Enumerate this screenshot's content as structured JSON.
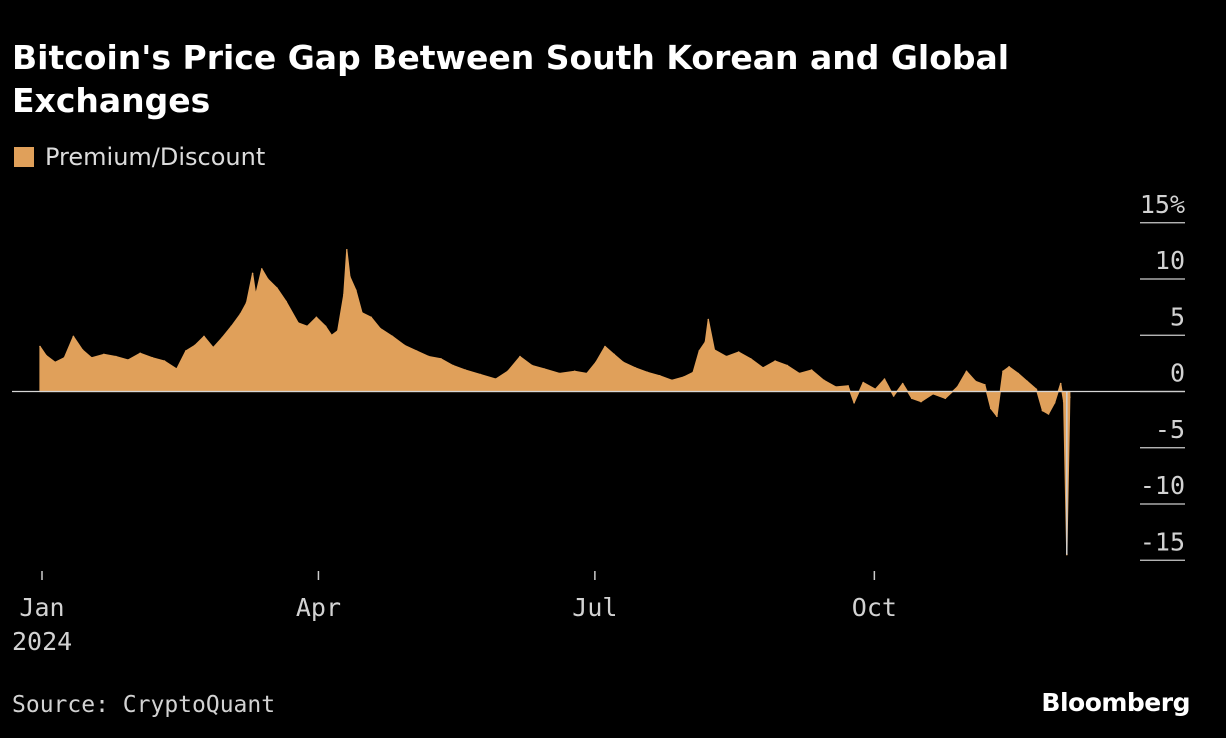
{
  "chart_data": {
    "type": "area",
    "title": "Bitcoin's Price Gap Between South Korean and Global Exchanges",
    "legend": [
      {
        "name": "Premium/Discount",
        "color": "#E0A05A"
      }
    ],
    "legend_placement": "top-left",
    "ylabel_unit": "%",
    "ylim": [
      -15,
      15
    ],
    "yticks": [
      15,
      10,
      5,
      0,
      -5,
      -10,
      -15
    ],
    "ytick_labels": [
      "15%",
      "10",
      "5",
      "0",
      "-5",
      "-10",
      "-15"
    ],
    "xlim": [
      "2024-01-01",
      "2024-12-10"
    ],
    "xticks": [
      {
        "date": "2024-01-01",
        "label": "Jan",
        "sublabel": "2024"
      },
      {
        "date": "2024-04-01",
        "label": "Apr",
        "sublabel": ""
      },
      {
        "date": "2024-07-01",
        "label": "Jul",
        "sublabel": ""
      },
      {
        "date": "2024-10-01",
        "label": "Oct",
        "sublabel": ""
      }
    ],
    "grid": false,
    "series": [
      {
        "name": "Premium/Discount",
        "color": "#E0A05A",
        "points": [
          [
            "2024-01-01",
            4.0
          ],
          [
            "2024-01-03",
            3.2
          ],
          [
            "2024-01-06",
            2.6
          ],
          [
            "2024-01-09",
            3.0
          ],
          [
            "2024-01-12",
            4.9
          ],
          [
            "2024-01-15",
            3.7
          ],
          [
            "2024-01-18",
            3.0
          ],
          [
            "2024-01-22",
            3.3
          ],
          [
            "2024-01-26",
            3.1
          ],
          [
            "2024-01-30",
            2.8
          ],
          [
            "2024-02-03",
            3.4
          ],
          [
            "2024-02-07",
            3.0
          ],
          [
            "2024-02-11",
            2.7
          ],
          [
            "2024-02-15",
            2.0
          ],
          [
            "2024-02-18",
            3.6
          ],
          [
            "2024-02-21",
            4.1
          ],
          [
            "2024-02-24",
            4.9
          ],
          [
            "2024-02-27",
            3.9
          ],
          [
            "2024-03-01",
            4.8
          ],
          [
            "2024-03-04",
            5.8
          ],
          [
            "2024-03-07",
            6.9
          ],
          [
            "2024-03-09",
            7.9
          ],
          [
            "2024-03-11",
            10.5
          ],
          [
            "2024-03-12",
            8.6
          ],
          [
            "2024-03-14",
            10.9
          ],
          [
            "2024-03-16",
            10.0
          ],
          [
            "2024-03-19",
            9.2
          ],
          [
            "2024-03-22",
            8.0
          ],
          [
            "2024-03-26",
            6.1
          ],
          [
            "2024-03-29",
            5.8
          ],
          [
            "2024-04-01",
            6.6
          ],
          [
            "2024-04-04",
            5.8
          ],
          [
            "2024-04-06",
            5.0
          ],
          [
            "2024-04-08",
            5.4
          ],
          [
            "2024-04-10",
            8.6
          ],
          [
            "2024-04-11",
            12.6
          ],
          [
            "2024-04-12",
            10.2
          ],
          [
            "2024-04-14",
            9.0
          ],
          [
            "2024-04-16",
            7.0
          ],
          [
            "2024-04-19",
            6.6
          ],
          [
            "2024-04-22",
            5.6
          ],
          [
            "2024-04-26",
            4.9
          ],
          [
            "2024-04-30",
            4.1
          ],
          [
            "2024-05-04",
            3.6
          ],
          [
            "2024-05-08",
            3.1
          ],
          [
            "2024-05-12",
            2.9
          ],
          [
            "2024-05-16",
            2.3
          ],
          [
            "2024-05-20",
            1.9
          ],
          [
            "2024-05-25",
            1.5
          ],
          [
            "2024-05-30",
            1.1
          ],
          [
            "2024-06-03",
            1.8
          ],
          [
            "2024-06-07",
            3.1
          ],
          [
            "2024-06-11",
            2.3
          ],
          [
            "2024-06-15",
            2.0
          ],
          [
            "2024-06-20",
            1.6
          ],
          [
            "2024-06-25",
            1.8
          ],
          [
            "2024-06-29",
            1.6
          ],
          [
            "2024-07-02",
            2.6
          ],
          [
            "2024-07-05",
            4.0
          ],
          [
            "2024-07-08",
            3.3
          ],
          [
            "2024-07-11",
            2.6
          ],
          [
            "2024-07-15",
            2.1
          ],
          [
            "2024-07-19",
            1.7
          ],
          [
            "2024-07-23",
            1.4
          ],
          [
            "2024-07-27",
            1.0
          ],
          [
            "2024-07-31",
            1.3
          ],
          [
            "2024-08-03",
            1.7
          ],
          [
            "2024-08-05",
            3.6
          ],
          [
            "2024-08-07",
            4.4
          ],
          [
            "2024-08-08",
            6.4
          ],
          [
            "2024-08-10",
            3.7
          ],
          [
            "2024-08-14",
            3.1
          ],
          [
            "2024-08-18",
            3.5
          ],
          [
            "2024-08-22",
            2.9
          ],
          [
            "2024-08-26",
            2.1
          ],
          [
            "2024-08-30",
            2.7
          ],
          [
            "2024-09-03",
            2.3
          ],
          [
            "2024-09-07",
            1.6
          ],
          [
            "2024-09-11",
            1.9
          ],
          [
            "2024-09-15",
            1.0
          ],
          [
            "2024-09-19",
            0.4
          ],
          [
            "2024-09-23",
            0.5
          ],
          [
            "2024-09-25",
            -1.0
          ],
          [
            "2024-09-28",
            0.8
          ],
          [
            "2024-10-02",
            0.2
          ],
          [
            "2024-10-05",
            1.1
          ],
          [
            "2024-10-08",
            -0.4
          ],
          [
            "2024-10-11",
            0.7
          ],
          [
            "2024-10-14",
            -0.6
          ],
          [
            "2024-10-17",
            -0.9
          ],
          [
            "2024-10-21",
            -0.2
          ],
          [
            "2024-10-25",
            -0.6
          ],
          [
            "2024-10-29",
            0.4
          ],
          [
            "2024-11-01",
            1.8
          ],
          [
            "2024-11-04",
            0.9
          ],
          [
            "2024-11-07",
            0.6
          ],
          [
            "2024-11-09",
            -1.5
          ],
          [
            "2024-11-11",
            -2.2
          ],
          [
            "2024-11-13",
            1.8
          ],
          [
            "2024-11-15",
            2.2
          ],
          [
            "2024-11-18",
            1.6
          ],
          [
            "2024-11-21",
            0.9
          ],
          [
            "2024-11-24",
            0.2
          ],
          [
            "2024-11-26",
            -1.7
          ],
          [
            "2024-11-28",
            -2.0
          ],
          [
            "2024-11-30",
            -1.0
          ],
          [
            "2024-12-02",
            0.7
          ],
          [
            "2024-12-03",
            -0.9
          ],
          [
            "2024-12-04",
            -14.5
          ],
          [
            "2024-12-05",
            -0.5
          ]
        ]
      }
    ]
  },
  "source": "Source: CryptoQuant",
  "brand": "Bloomberg",
  "colors": {
    "background": "#000000",
    "area": "#E0A05A",
    "axis": "#cccccc",
    "text": "#d2d2d2"
  }
}
